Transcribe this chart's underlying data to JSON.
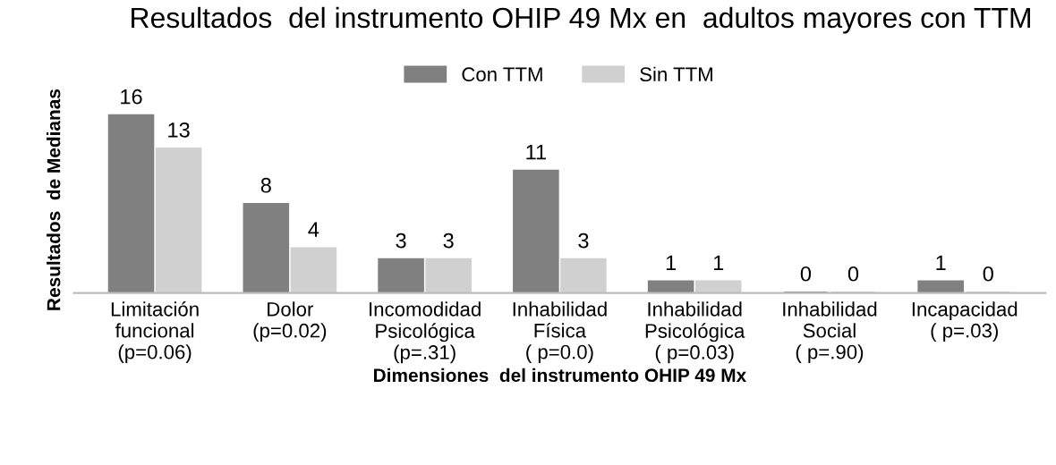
{
  "chart_data": {
    "type": "bar",
    "title": "Resultados  del instrumento OHIP 49 Mx en  adultos mayores con TTM",
    "xlabel": "Dimensiones  del instrumento OHIP 49 Mx",
    "ylabel": "Resultados  de Medianas",
    "categories": [
      "Limitación\nfuncional\n(p=0.06)",
      "Dolor\n(p=0.02)",
      "Incomodidad\nPsicológica\n(p=.31)",
      "Inhabilidad\nFísica\n( p=0.0)",
      "Inhabilidad\nPsicológica\n( p=0.03)",
      "Inhabilidad\nSocial\n( p=.90)",
      "Incapacidad\n( p=.03)"
    ],
    "series": [
      {
        "name": "Con TTM",
        "color": "#808080",
        "values": [
          16,
          8,
          3,
          11,
          1,
          0,
          1
        ]
      },
      {
        "name": "Sin TTM",
        "color": "#d0d0d0",
        "values": [
          13,
          4,
          3,
          3,
          1,
          0,
          0
        ]
      }
    ],
    "data_labels": true,
    "legend": "top",
    "grid": false
  }
}
